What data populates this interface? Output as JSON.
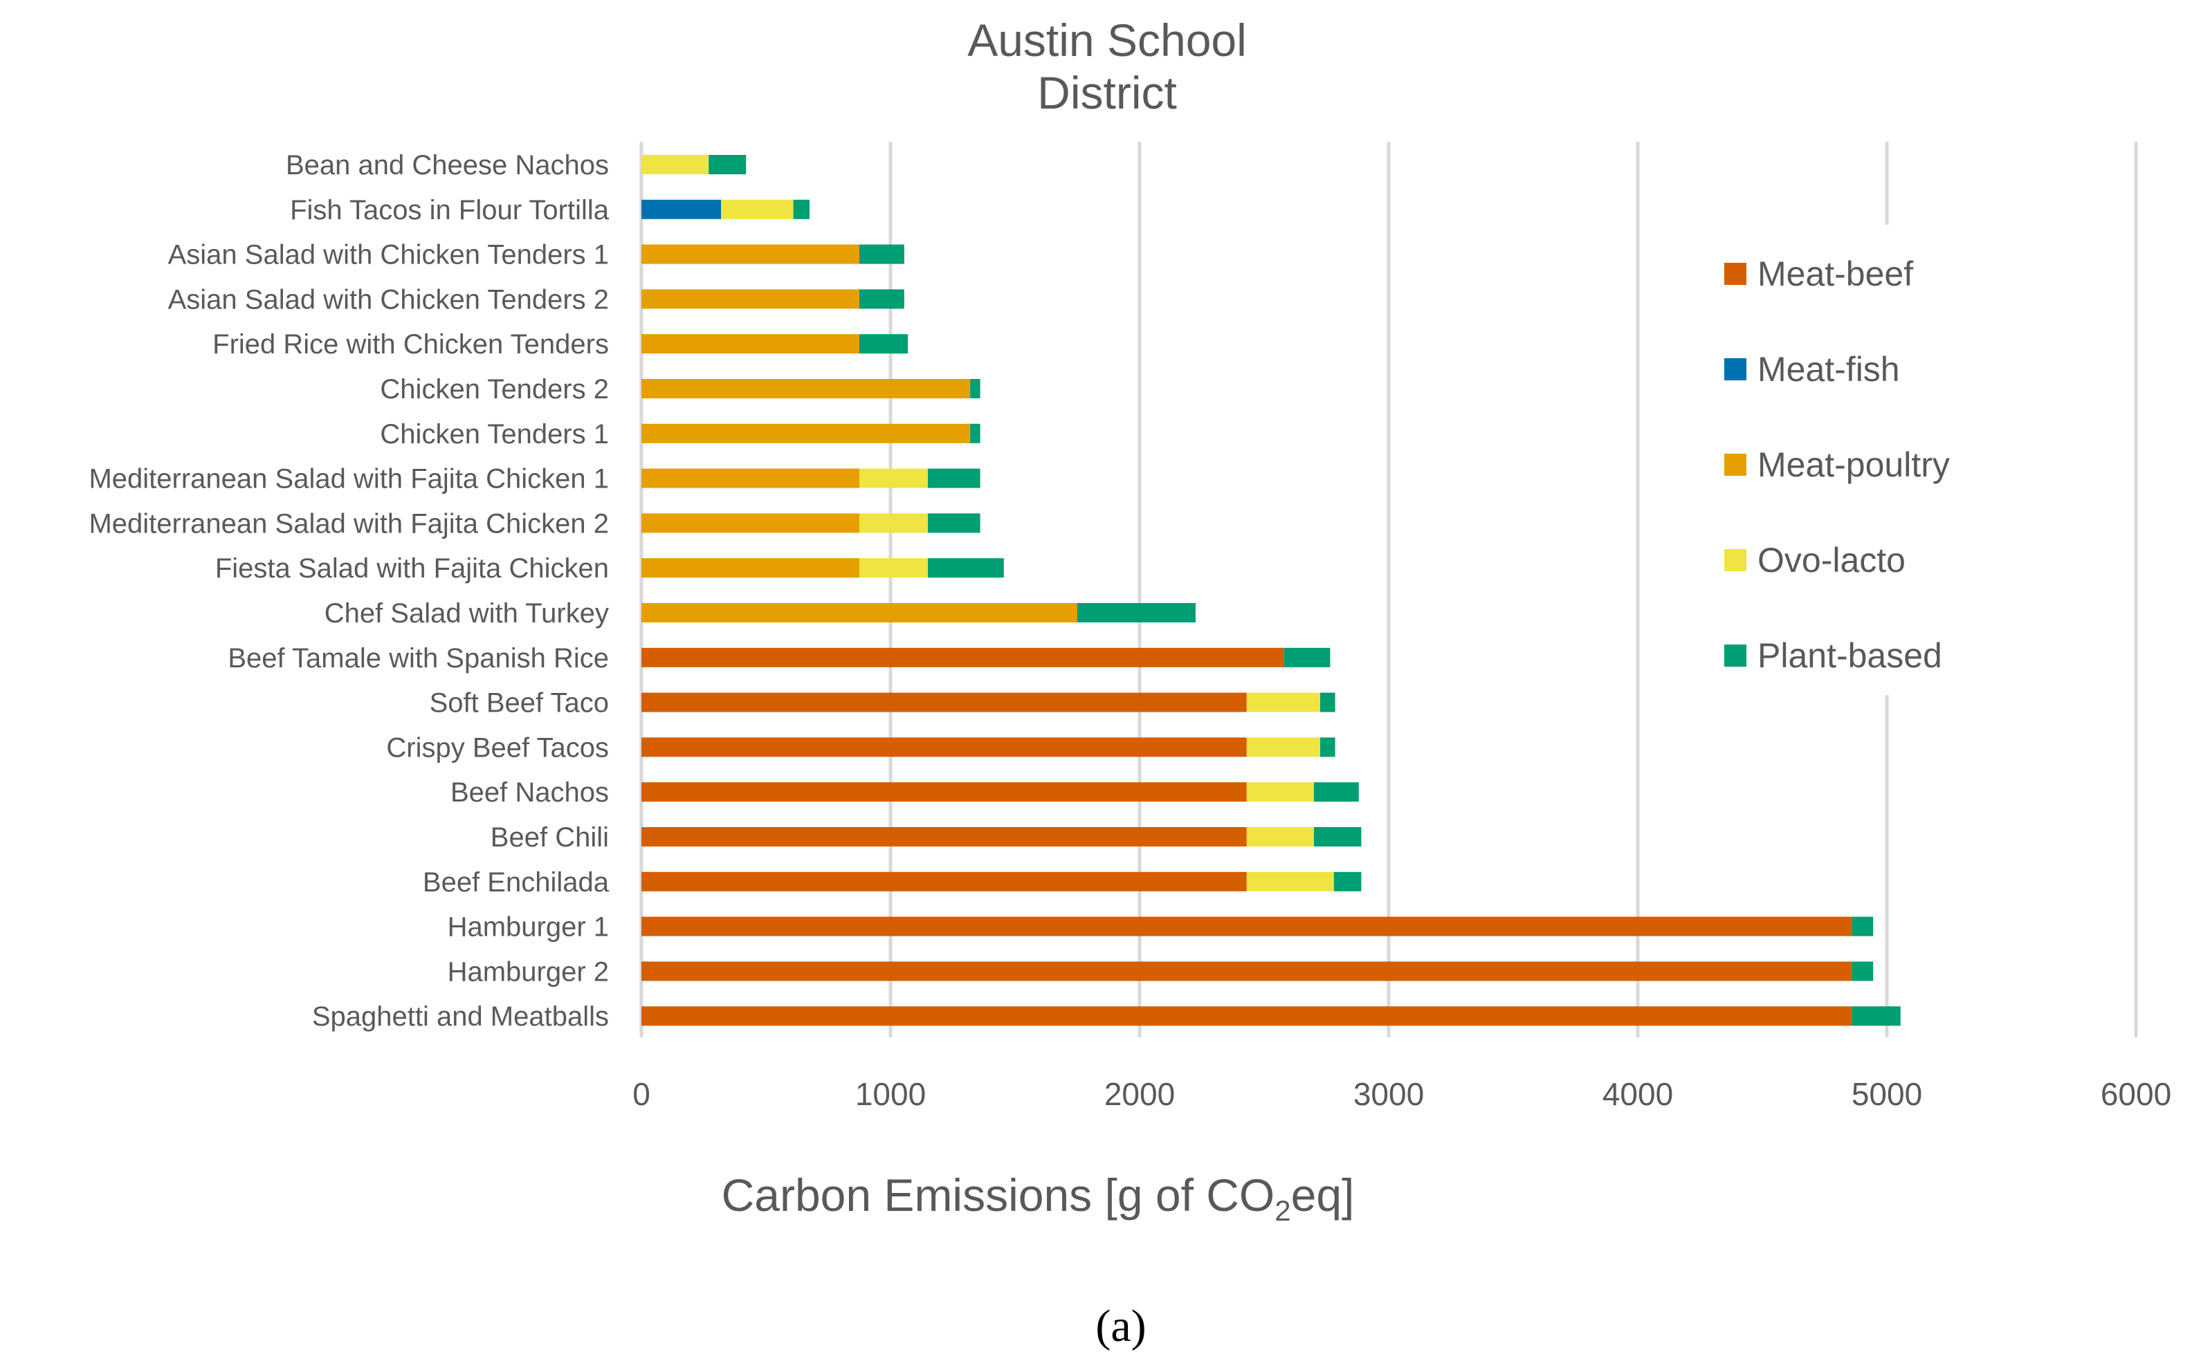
{
  "panel_label": "(a)",
  "chart_data": {
    "type": "bar",
    "orientation": "horizontal",
    "stacked": true,
    "title": "Austin School District",
    "xlabel": {
      "prefix": "Carbon Emissions [g of CO",
      "subscript": "2",
      "suffix": "eq]"
    },
    "xlim": [
      0,
      6000
    ],
    "xticks": [
      0,
      1000,
      2000,
      3000,
      4000,
      5000,
      6000
    ],
    "grid": "vertical",
    "legend_position": "right",
    "categories": [
      "Bean and Cheese Nachos",
      "Fish Tacos in Flour Tortilla",
      "Asian Salad with Chicken Tenders 1",
      "Asian Salad with Chicken Tenders 2",
      "Fried Rice with Chicken Tenders",
      "Chicken Tenders 2",
      "Chicken Tenders 1",
      "Mediterranean Salad with Fajita Chicken 1",
      "Mediterranean Salad with Fajita Chicken 2",
      "Fiesta Salad with Fajita Chicken",
      "Chef Salad with Turkey",
      "Beef Tamale with Spanish Rice",
      "Soft Beef Taco",
      "Crispy Beef Tacos",
      "Beef Nachos",
      "Beef Chili",
      "Beef Enchilada",
      "Hamburger 1",
      "Hamburger 2",
      "Spaghetti and Meatballs"
    ],
    "series": [
      {
        "name": "Meat-beef",
        "color": "#D55E00",
        "values": [
          0,
          0,
          0,
          0,
          0,
          0,
          0,
          0,
          0,
          0,
          0,
          2580,
          2430,
          2430,
          2430,
          2430,
          2430,
          4860,
          4860,
          4860
        ]
      },
      {
        "name": "Meat-fish",
        "color": "#0072B2",
        "values": [
          0,
          320,
          0,
          0,
          0,
          0,
          0,
          0,
          0,
          0,
          0,
          0,
          0,
          0,
          0,
          0,
          0,
          0,
          0,
          0
        ]
      },
      {
        "name": "Meat-poultry",
        "color": "#E69F00",
        "values": [
          0,
          0,
          875,
          875,
          875,
          1320,
          1320,
          875,
          875,
          875,
          1750,
          0,
          0,
          0,
          0,
          0,
          0,
          0,
          0,
          0
        ]
      },
      {
        "name": "Ovo-lacto",
        "color": "#F0E442",
        "values": [
          270,
          290,
          0,
          0,
          0,
          0,
          0,
          275,
          275,
          275,
          0,
          0,
          295,
          295,
          270,
          270,
          350,
          0,
          0,
          0
        ]
      },
      {
        "name": "Plant-based",
        "color": "#009E73",
        "values": [
          150,
          65,
          180,
          180,
          195,
          40,
          40,
          210,
          210,
          305,
          475,
          185,
          60,
          60,
          180,
          190,
          110,
          85,
          85,
          195
        ]
      }
    ]
  }
}
